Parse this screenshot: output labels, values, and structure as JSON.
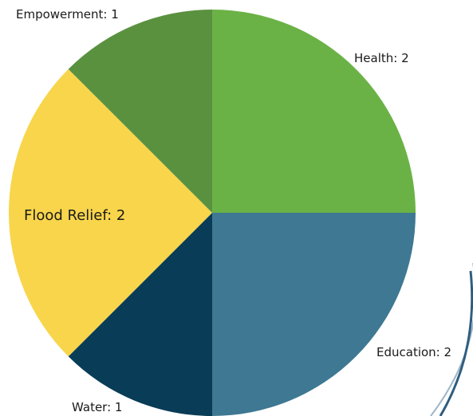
{
  "chart_data": {
    "type": "pie",
    "slices": [
      {
        "label": "Health",
        "value": 2,
        "display": "Health: 2",
        "color": "#6BB246"
      },
      {
        "label": "Education",
        "value": 2,
        "display": "Education: 2",
        "color": "#3E7893"
      },
      {
        "label": "Water",
        "value": 1,
        "display": "Water: 1",
        "color": "#093C57"
      },
      {
        "label": "Flood Relief",
        "value": 2,
        "display": "Flood Relief: 2",
        "color": "#F8D54B"
      },
      {
        "label": "Empowerment",
        "value": 1,
        "display": "Empowerment: 1",
        "color": "#5A913F"
      }
    ],
    "start_angle_deg": 0,
    "direction": "clockwise",
    "legend": "none",
    "grid": false
  },
  "decoration": {
    "swoosh_color": "#2F5D7E"
  }
}
